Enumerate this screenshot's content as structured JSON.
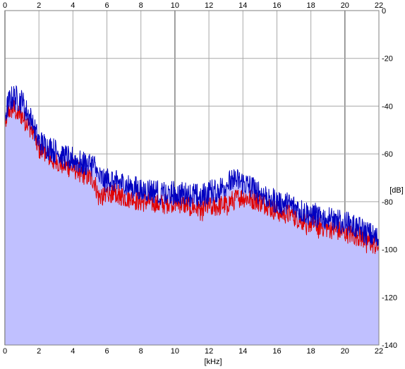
{
  "chart_data": {
    "type": "area",
    "title": "",
    "xlabel": "[kHz]",
    "ylabel": "[dB]",
    "xlim": [
      0,
      22
    ],
    "ylim": [
      -140,
      0
    ],
    "x_ticks": [
      "0",
      "2",
      "4",
      "6",
      "8",
      "10",
      "12",
      "14",
      "16",
      "18",
      "20",
      "22"
    ],
    "y_ticks": [
      "0",
      "-20",
      "-40",
      "-60",
      "-80",
      "-100",
      "-120",
      "-140"
    ],
    "grid": true,
    "legend": "none",
    "colors": {
      "fill": "#c0c0ff",
      "series_red": "#e00000",
      "series_blue": "#0000c0",
      "grid": "#a8a8a8",
      "grid_major": "#808080"
    },
    "series": [
      {
        "color": "red",
        "x": [
          0,
          0.25,
          0.5,
          0.75,
          1,
          1.25,
          1.5,
          1.75,
          2,
          2.5,
          3,
          3.5,
          4,
          4.5,
          5,
          5.25,
          5.5,
          6,
          6.5,
          7,
          7.5,
          8,
          8.5,
          9,
          9.5,
          10,
          10.5,
          11,
          11.5,
          12,
          12.5,
          13,
          13.5,
          14,
          14.5,
          15,
          15.5,
          16,
          16.5,
          17,
          17.5,
          18,
          18.5,
          19,
          19.5,
          20,
          20.5,
          21,
          21.5,
          22
        ],
        "values": [
          -46,
          -42,
          -41,
          -43,
          -44,
          -47,
          -49,
          -53,
          -58,
          -61,
          -63,
          -65,
          -66,
          -68,
          -70,
          -71,
          -78,
          -76,
          -76,
          -78,
          -79,
          -80,
          -80,
          -81,
          -81,
          -80,
          -81,
          -82,
          -83,
          -82,
          -82,
          -81,
          -79,
          -78,
          -79,
          -80,
          -82,
          -84,
          -85,
          -86,
          -88,
          -89,
          -90,
          -91,
          -92,
          -93,
          -94,
          -95,
          -97,
          -99
        ]
      },
      {
        "color": "blue",
        "x": [
          0,
          0.25,
          0.5,
          0.75,
          1,
          1.25,
          1.5,
          1.75,
          2,
          2.5,
          3,
          3.5,
          4,
          4.5,
          5,
          5.25,
          5.5,
          6,
          6.5,
          7,
          7.5,
          8,
          8.5,
          9,
          9.5,
          10,
          10.5,
          11,
          11.5,
          12,
          12.5,
          13,
          13.5,
          14,
          14.5,
          15,
          15.5,
          16,
          16.5,
          17,
          17.5,
          18,
          18.5,
          19,
          19.5,
          20,
          20.5,
          21,
          21.5,
          22
        ],
        "values": [
          -44,
          -38,
          -36,
          -37,
          -38,
          -42,
          -45,
          -50,
          -55,
          -57,
          -59,
          -61,
          -62,
          -64,
          -64,
          -65,
          -70,
          -71,
          -71,
          -73,
          -74,
          -75,
          -75,
          -76,
          -77,
          -76,
          -77,
          -77,
          -78,
          -76,
          -75,
          -73,
          -71,
          -72,
          -74,
          -76,
          -78,
          -80,
          -81,
          -82,
          -84,
          -85,
          -86,
          -87,
          -88,
          -89,
          -90,
          -92,
          -94,
          -96
        ]
      }
    ]
  }
}
